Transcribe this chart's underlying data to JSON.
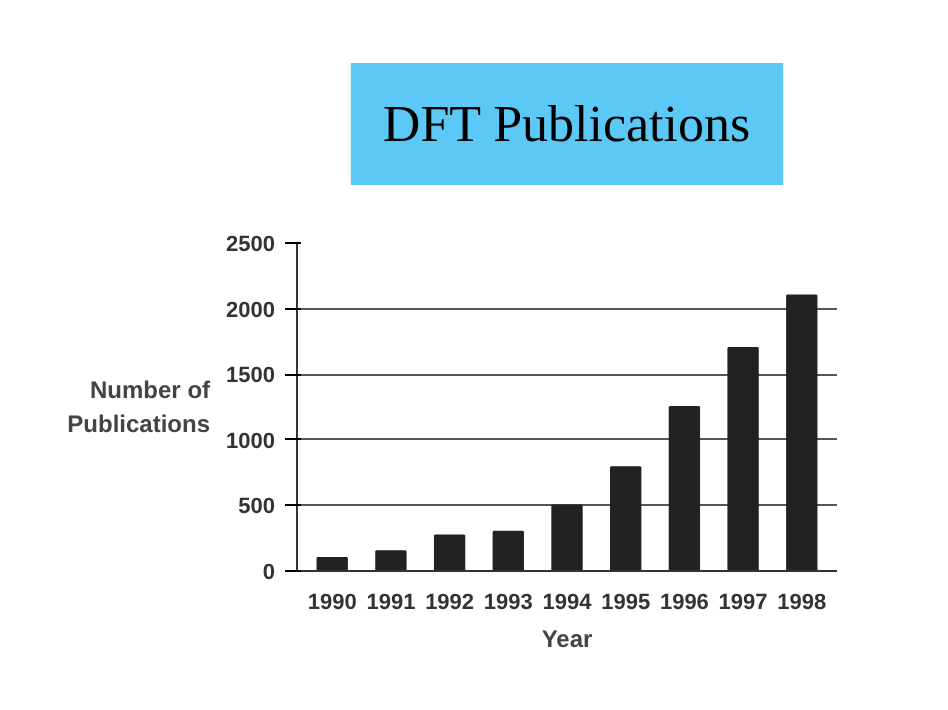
{
  "chart_data": {
    "type": "bar",
    "title": "DFT Publications",
    "xlabel": "Year",
    "ylabel": "Number of Publications",
    "categories": [
      "1990",
      "1991",
      "1992",
      "1993",
      "1994",
      "1995",
      "1996",
      "1997",
      "1998"
    ],
    "values": [
      100,
      150,
      270,
      300,
      500,
      790,
      1250,
      1700,
      2100
    ],
    "color": "#222222",
    "ylim": [
      0,
      2500
    ],
    "yticks": [
      0,
      500,
      1000,
      1500,
      2000,
      2500
    ],
    "grid": "y"
  }
}
